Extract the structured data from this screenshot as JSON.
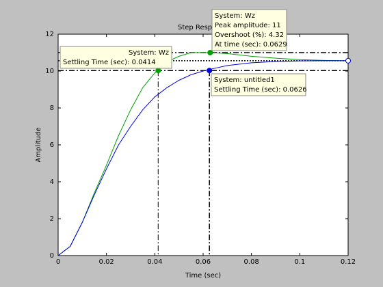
{
  "chart_data": {
    "type": "line",
    "title": "Step Response",
    "x_label": "Time (sec)",
    "y_label": "Amplitude",
    "x": [
      0,
      0.005,
      0.01,
      0.015,
      0.02,
      0.025,
      0.03,
      0.035,
      0.04,
      0.045,
      0.05,
      0.055,
      0.06,
      0.063,
      0.07,
      0.08,
      0.09,
      0.1,
      0.11,
      0.12
    ],
    "series": [
      {
        "name": "Wz",
        "color": "#00a000",
        "values": [
          0,
          0.5,
          1.8,
          3.4,
          4.9,
          6.5,
          7.9,
          9.1,
          9.9,
          10.5,
          10.8,
          11.0,
          11.0,
          11.0,
          10.95,
          10.8,
          10.7,
          10.62,
          10.58,
          10.56
        ]
      },
      {
        "name": "untitled1",
        "color": "#0000e0",
        "values": [
          0,
          0.5,
          1.8,
          3.3,
          4.7,
          6.0,
          7.0,
          7.9,
          8.6,
          9.1,
          9.5,
          9.8,
          10.0,
          10.1,
          10.3,
          10.45,
          10.52,
          10.55,
          10.56,
          10.56
        ]
      }
    ],
    "xlim": [
      0,
      0.12
    ],
    "xticks": [
      0,
      0.02,
      0.04,
      0.06,
      0.08,
      0.1,
      0.12
    ],
    "ylim": [
      0,
      12
    ],
    "yticks": [
      0,
      2,
      4,
      6,
      8,
      10,
      12
    ],
    "hlines": [
      11.0,
      10.03
    ],
    "final_value_line": 10.56,
    "vlines": [
      0.0414,
      0.0626
    ],
    "end_marker": {
      "x": 0.12,
      "y": 10.56
    },
    "datatips": [
      {
        "x": 0.0629,
        "y": 11.0,
        "color": "#00a000",
        "lines": [
          "System: Wz",
          "Peak amplitude: 11",
          "Overshoot (%): 4.32",
          "At time (sec): 0.0629"
        ]
      },
      {
        "x": 0.0414,
        "y": 10.03,
        "color": "#00a000",
        "lines": [
          "System: Wz",
          "Settling Time (sec): 0.0414"
        ]
      },
      {
        "x": 0.0626,
        "y": 10.03,
        "color": "#0000e0",
        "lines": [
          "System: untitled1",
          "Settling Time (sec): 0.0626"
        ]
      }
    ]
  }
}
